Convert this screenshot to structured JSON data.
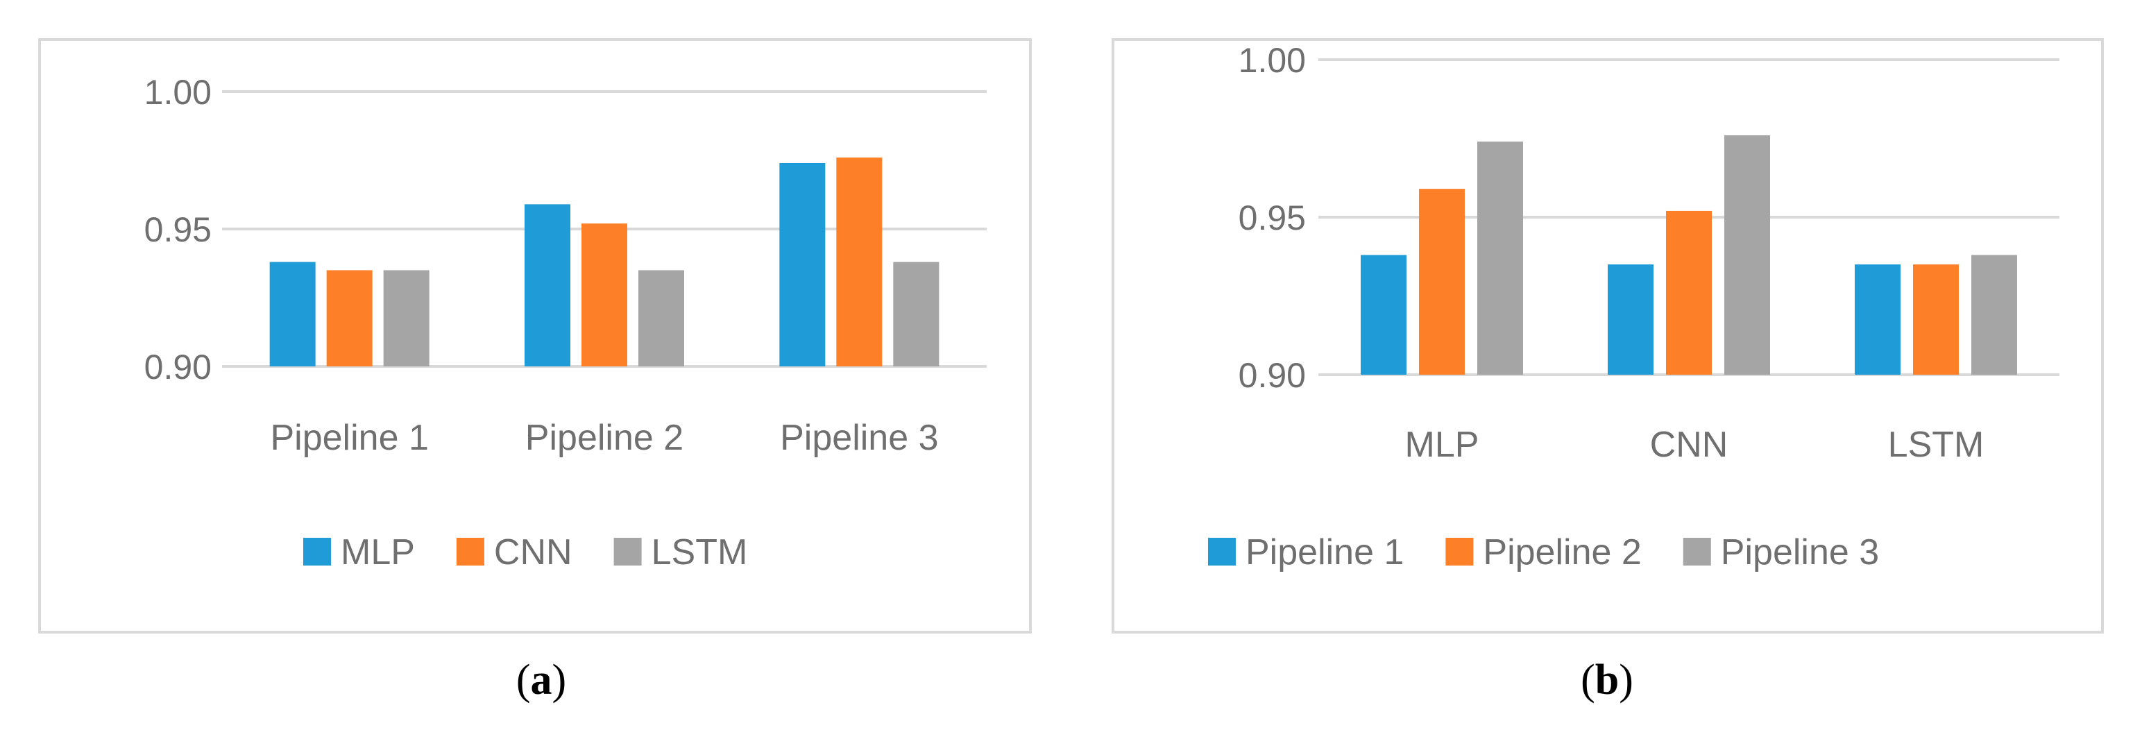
{
  "chart_data": [
    {
      "type": "bar",
      "panel": "a",
      "caption_left": "(",
      "caption_letter": "a",
      "caption_right": ")",
      "categories": [
        "Pipeline 1",
        "Pipeline 2",
        "Pipeline 3"
      ],
      "series": [
        {
          "name": "MLP",
          "color": "#1f9bd7",
          "values": [
            0.938,
            0.959,
            0.974
          ]
        },
        {
          "name": "CNN",
          "color": "#fd7f28",
          "values": [
            0.935,
            0.952,
            0.976
          ]
        },
        {
          "name": "LSTM",
          "color": "#a5a5a5",
          "values": [
            0.935,
            0.935,
            0.938
          ]
        }
      ],
      "yticks": [
        "0.90",
        "0.95",
        "1.00"
      ],
      "ylim": [
        0.9,
        1.0
      ],
      "grid": true,
      "legend": "bottom"
    },
    {
      "type": "bar",
      "panel": "b",
      "caption_left": "(",
      "caption_letter": "b",
      "caption_right": ")",
      "categories": [
        "MLP",
        "CNN",
        "LSTM"
      ],
      "series": [
        {
          "name": "Pipeline 1",
          "color": "#1f9bd7",
          "values": [
            0.938,
            0.935,
            0.935
          ]
        },
        {
          "name": "Pipeline 2",
          "color": "#fd7f28",
          "values": [
            0.959,
            0.952,
            0.935
          ]
        },
        {
          "name": "Pipeline 3",
          "color": "#a5a5a5",
          "values": [
            0.974,
            0.976,
            0.938
          ]
        }
      ],
      "yticks": [
        "0.90",
        "0.95",
        "1.00"
      ],
      "ylim": [
        0.9,
        1.0
      ],
      "grid": true,
      "legend": "bottom"
    }
  ]
}
